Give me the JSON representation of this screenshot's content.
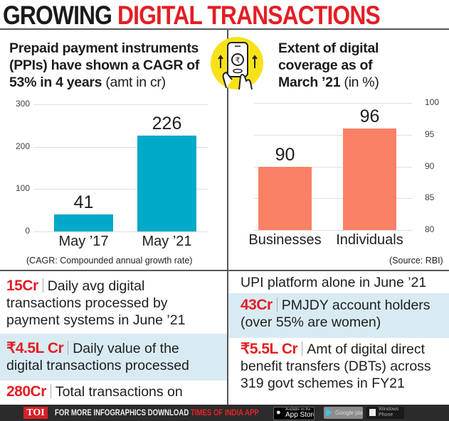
{
  "title": {
    "part1": "GROWING",
    "part2": "DIGITAL TRANSACTIONS"
  },
  "colors": {
    "accent_red": "#e31e24",
    "bar_teal": "#00a9c7",
    "bar_salmon": "#fa8066",
    "band_blue": "#d9ebf2",
    "icon_yellow": "#f7e21a"
  },
  "left_panel": {
    "heading_bold_1": "Prepaid payment instruments",
    "heading_bold_2": "(PPIs) have shown a CAGR of",
    "heading_bold_3": "53% in 4 years",
    "heading_light": "(amt in cr)",
    "footnote": "(CAGR: Compounded annual growth rate)"
  },
  "right_panel": {
    "icon": "phone-rupee-icon",
    "heading_bold_1": "Extent of digital",
    "heading_bold_2": "coverage as of",
    "heading_bold_3": "March ’21",
    "heading_light": "(in %)",
    "source": "(Source: RBI)"
  },
  "chart_data": [
    {
      "type": "bar",
      "title": "Prepaid payment instruments (PPIs) have shown a CAGR of 53% in 4 years (amt in cr)",
      "categories": [
        "May ’17",
        "May ’21"
      ],
      "values": [
        41,
        226
      ],
      "value_labels": [
        "41",
        "226"
      ],
      "ylim": [
        0,
        300
      ],
      "yticks": [
        "0",
        "100",
        "200",
        "300"
      ],
      "ytick_values": [
        0,
        100,
        200,
        300
      ],
      "y_axis_side": "left",
      "grid": true,
      "xlabel": "",
      "ylabel": ""
    },
    {
      "type": "bar",
      "title": "Extent of digital coverage as of March ’21 (in %)",
      "categories": [
        "Businesses",
        "Individuals"
      ],
      "values": [
        90,
        96
      ],
      "value_labels": [
        "90",
        "96"
      ],
      "ylim": [
        80,
        100
      ],
      "yticks": [
        "80",
        "85",
        "90",
        "95",
        "100"
      ],
      "ytick_values": [
        80,
        85,
        90,
        95,
        100
      ],
      "y_axis_side": "right",
      "grid": true,
      "xlabel": "",
      "ylabel": ""
    }
  ],
  "facts": {
    "f1": {
      "number": "15Cr",
      "line1": "Daily avg digital",
      "line2": "transactions processed by",
      "line3": "payment systems in June ’21"
    },
    "f2": {
      "number": "₹4.5L Cr",
      "line1": "Daily value of the",
      "line2": "digital transactions processed"
    },
    "f3": {
      "number": "280Cr",
      "line1": "Total transactions on",
      "line2": "UPI platform alone in June ’21"
    },
    "f4": {
      "number": "43Cr",
      "line1": "PMJDY account holders",
      "line2": "(over 55% are women)"
    },
    "f5": {
      "number": "₹5.5L Cr",
      "line1": "Amt of digital direct",
      "line2": "benefit transfers (DBTs) across",
      "line3": "319 govt schemes in FY21"
    }
  },
  "footer": {
    "logo": "TOI",
    "text_white": "FOR MORE  INFOGRAPHICS DOWNLOAD ",
    "text_red": "TIMES OF INDIA  APP",
    "app_store_small": "Available on the",
    "app_store": "App Store",
    "google_play": "Google play",
    "windows_1": "Windows",
    "windows_2": "Phone"
  }
}
